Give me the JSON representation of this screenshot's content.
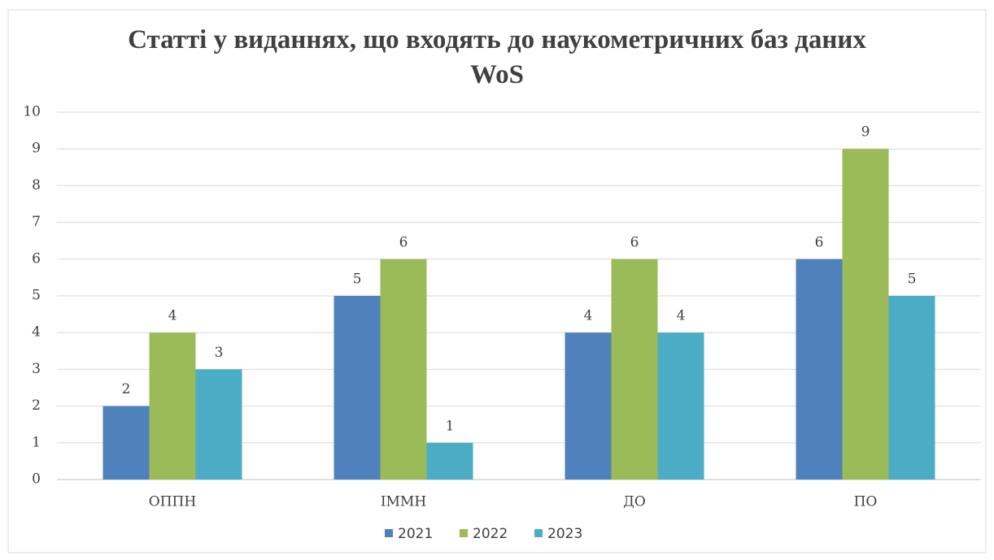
{
  "chart_data": {
    "type": "bar",
    "title": "Статті у виданнях, що входять до наукометричних баз даних WoS",
    "categories": [
      "ОППН",
      "ІММН",
      "ДО",
      "ПО"
    ],
    "series": [
      {
        "name": "2021",
        "color": "#4f81bd",
        "values": [
          2,
          5,
          4,
          6
        ]
      },
      {
        "name": "2022",
        "color": "#9bbb59",
        "values": [
          4,
          6,
          6,
          9
        ]
      },
      {
        "name": "2023",
        "color": "#4bacc6",
        "values": [
          3,
          1,
          4,
          5
        ]
      }
    ],
    "ylim": [
      0,
      10
    ],
    "yticks": [
      0,
      1,
      2,
      3,
      4,
      5,
      6,
      7,
      8,
      9,
      10
    ],
    "grid": true,
    "legend": "bottom"
  }
}
